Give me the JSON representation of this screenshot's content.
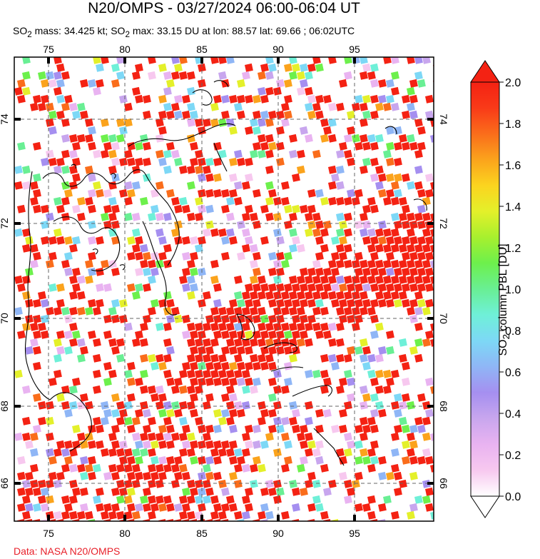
{
  "title": "N20/OMPS - 03/27/2024 06:00-06:04 UT",
  "subtitle": {
    "mass_prefix": "SO",
    "mass_sub": "2",
    "mass_text": " mass: 34.425 kt; SO",
    "max_sub": "2",
    "max_text": " max: 33.15 DU at lon: 88.57 lat: 69.66 ; 06:02UTC"
  },
  "credit": "Data: NASA N20/OMPS",
  "map": {
    "lon_ticks": [
      "75",
      "80",
      "85",
      "90",
      "95"
    ],
    "lat_ticks": [
      "74",
      "72",
      "70",
      "68",
      "66"
    ]
  },
  "colorbar": {
    "title_prefix": "SO",
    "title_sub": "2",
    "title_text": " column PBL [DU]",
    "min": 0.0,
    "max": 2.0,
    "ticks": [
      "2.0",
      "1.8",
      "1.6",
      "1.4",
      "1.2",
      "1.0",
      "0.8",
      "0.6",
      "0.4",
      "0.2",
      "0.0"
    ],
    "colors": [
      "#ffffff",
      "#f7c8ef",
      "#e9b3f1",
      "#c8a6ee",
      "#a58ff0",
      "#8fb6f6",
      "#7dd8f6",
      "#6ff0d8",
      "#69ef94",
      "#6df04c",
      "#a7f02e",
      "#e4f02a",
      "#fbd41f",
      "#fba31c",
      "#fa6d1b",
      "#f93a18",
      "#f42213"
    ]
  }
}
